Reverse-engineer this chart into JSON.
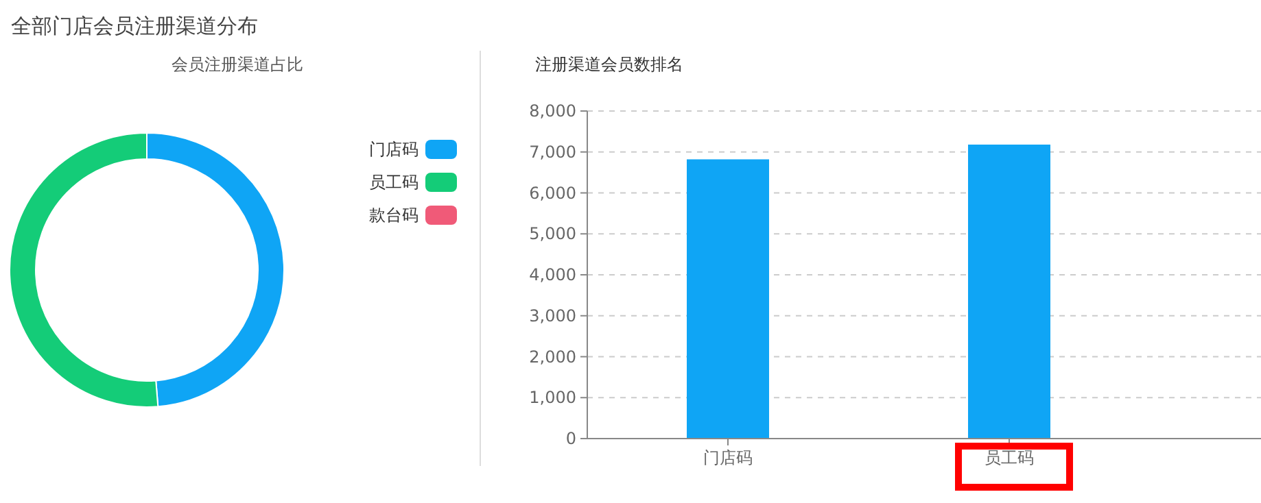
{
  "chart_data": [
    {
      "type": "donut",
      "title": "全部门店会员注册渠道分布",
      "subtitle": "会员注册渠道占比",
      "categories": [
        "门店码",
        "员工码",
        "款台码"
      ],
      "values": [
        48.7,
        51.3,
        0
      ],
      "colors": [
        "#0fa5f5",
        "#14cc78",
        "#f05a78"
      ],
      "legend": "right"
    },
    {
      "type": "bar",
      "title": "注册渠道会员数排名",
      "categories": [
        "门店码",
        "员工码"
      ],
      "values": [
        6820,
        7180
      ],
      "color": "#0fa5f5",
      "ylim": [
        0,
        8000
      ],
      "yticks": [
        {
          "value": 0,
          "label": "0"
        },
        {
          "value": 1000,
          "label": "1,000"
        },
        {
          "value": 2000,
          "label": "2,000"
        },
        {
          "value": 3000,
          "label": "3,000"
        },
        {
          "value": 4000,
          "label": "4,000"
        },
        {
          "value": 5000,
          "label": "5,000"
        },
        {
          "value": 6000,
          "label": "6,000"
        },
        {
          "value": 7000,
          "label": "7,000"
        },
        {
          "value": 8000,
          "label": "8,000"
        }
      ],
      "grid": "y"
    }
  ]
}
